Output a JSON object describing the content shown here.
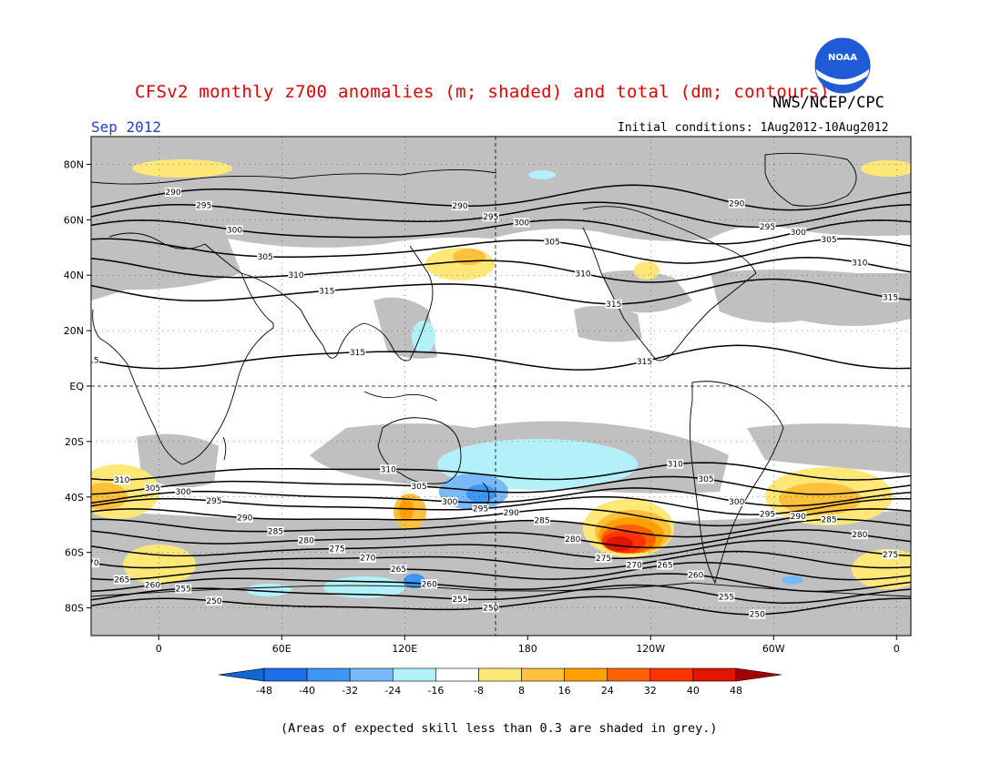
{
  "header": {
    "title": "CFSv2 monthly z700 anomalies (m; shaded) and total (dm; contours)",
    "agency": "NWS/NCEP/CPC",
    "month": "Sep 2012",
    "initial_conditions": "Initial conditions: 1Aug2012-10Aug2012"
  },
  "logo": {
    "text": "NOAA",
    "icon": "noaa-logo-icon"
  },
  "map": {
    "lon_ticks": [
      "0",
      "60E",
      "120E",
      "180",
      "120W",
      "60W",
      "0"
    ],
    "lat_ticks": [
      "80N",
      "60N",
      "40N",
      "20N",
      "EQ",
      "20S",
      "40S",
      "60S",
      "80S"
    ],
    "lon_range": [
      -33,
      367
    ],
    "lat_range": [
      -90,
      90
    ],
    "grey_color": "#c0c0c0",
    "contour_interval_dm": 5
  },
  "contours": [
    {
      "level": 290,
      "label": "290",
      "lat": 68
    },
    {
      "level": 295,
      "label": "295",
      "lat": 62
    },
    {
      "level": 300,
      "label": "300",
      "lat": 56
    },
    {
      "level": 305,
      "label": "305",
      "lat": 49
    },
    {
      "level": 310,
      "label": "310",
      "lat": 42
    },
    {
      "level": 315,
      "label": "315",
      "lat": 34
    },
    {
      "level": 315,
      "label": "315",
      "lat": 10
    },
    {
      "level": 310,
      "label": "310",
      "lat": -31
    },
    {
      "level": 305,
      "label": "305",
      "lat": -36
    },
    {
      "level": 300,
      "label": "300",
      "lat": -40
    },
    {
      "level": 295,
      "label": "295",
      "lat": -43
    },
    {
      "level": 290,
      "label": "290",
      "lat": -47
    },
    {
      "level": 285,
      "label": "285",
      "lat": -51
    },
    {
      "level": 280,
      "label": "280",
      "lat": -55
    },
    {
      "level": 275,
      "label": "275",
      "lat": -59
    },
    {
      "level": 270,
      "label": "270",
      "lat": -63
    },
    {
      "level": 265,
      "label": "265",
      "lat": -67
    },
    {
      "level": 260,
      "label": "260",
      "lat": -71
    },
    {
      "level": 255,
      "label": "255",
      "lat": -75
    },
    {
      "level": 250,
      "label": "250",
      "lat": -79
    }
  ],
  "colorbar": {
    "labels": [
      "-48",
      "-40",
      "-32",
      "-24",
      "-16",
      "-8",
      "8",
      "16",
      "24",
      "32",
      "40",
      "48"
    ],
    "colors": [
      "#1464d2",
      "#1e6eeb",
      "#3c96f5",
      "#78b9fa",
      "#b4f0fa",
      "#ffffff",
      "#ffe878",
      "#ffc03c",
      "#ffa000",
      "#ff6000",
      "#ff3200",
      "#e11400",
      "#a50000"
    ]
  },
  "footnote": "(Areas of expected skill less than 0.3 are shaded in grey.)"
}
